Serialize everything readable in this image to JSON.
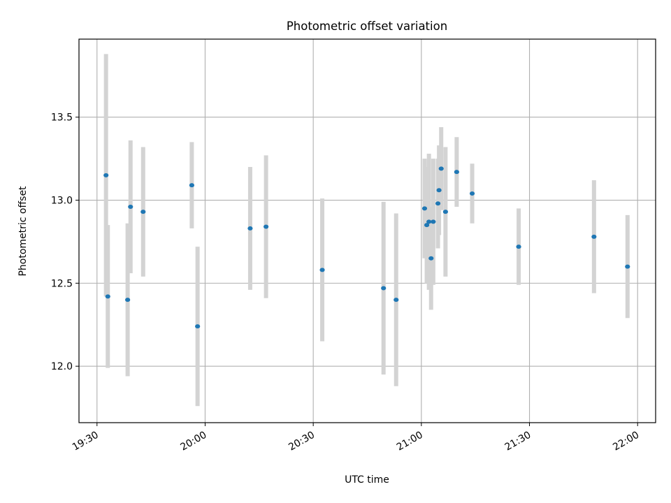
{
  "chart_data": {
    "type": "scatter",
    "title": "Photometric offset variation",
    "xlabel": "UTC time",
    "ylabel": "Photometric offset",
    "grid": true,
    "legend": "none",
    "xlim": [
      "19:25",
      "22:05"
    ],
    "ylim": [
      11.66,
      13.97
    ],
    "x_ticks": [
      "19:30",
      "20:00",
      "20:30",
      "21:00",
      "21:30",
      "22:00"
    ],
    "y_ticks": [
      12.0,
      12.5,
      13.0,
      13.5
    ],
    "y_tick_labels": [
      "12.0",
      "12.5",
      "13.0",
      "13.5"
    ],
    "colors": {
      "point": "#1f77b4",
      "errorbar": "#d3d3d3",
      "grid": "#b0b0b0",
      "axes": "#000000"
    },
    "points": [
      {
        "x": "19:32:30",
        "y": 13.15,
        "err": 0.73
      },
      {
        "x": "19:33:00",
        "y": 12.42,
        "err": 0.43
      },
      {
        "x": "19:38:30",
        "y": 12.4,
        "err": 0.46
      },
      {
        "x": "19:39:18",
        "y": 12.96,
        "err": 0.4
      },
      {
        "x": "19:42:48",
        "y": 12.93,
        "err": 0.39
      },
      {
        "x": "19:56:18",
        "y": 13.09,
        "err": 0.26
      },
      {
        "x": "19:57:54",
        "y": 12.24,
        "err": 0.48
      },
      {
        "x": "20:12:30",
        "y": 12.83,
        "err": 0.37
      },
      {
        "x": "20:16:54",
        "y": 12.84,
        "err": 0.43
      },
      {
        "x": "20:32:30",
        "y": 12.58,
        "err": 0.43
      },
      {
        "x": "20:49:30",
        "y": 12.47,
        "err": 0.52
      },
      {
        "x": "20:53:00",
        "y": 12.4,
        "err": 0.52
      },
      {
        "x": "21:00:54",
        "y": 12.95,
        "err": 0.3
      },
      {
        "x": "21:01:30",
        "y": 12.85,
        "err": 0.35
      },
      {
        "x": "21:02:06",
        "y": 12.87,
        "err": 0.41
      },
      {
        "x": "21:02:42",
        "y": 12.65,
        "err": 0.31
      },
      {
        "x": "21:03:18",
        "y": 12.87,
        "err": 0.38
      },
      {
        "x": "21:04:36",
        "y": 12.98,
        "err": 0.27
      },
      {
        "x": "21:04:54",
        "y": 13.06,
        "err": 0.27
      },
      {
        "x": "21:05:30",
        "y": 13.19,
        "err": 0.25
      },
      {
        "x": "21:06:42",
        "y": 12.93,
        "err": 0.39
      },
      {
        "x": "21:09:48",
        "y": 13.17,
        "err": 0.21
      },
      {
        "x": "21:14:06",
        "y": 13.04,
        "err": 0.18
      },
      {
        "x": "21:27:00",
        "y": 12.72,
        "err": 0.23
      },
      {
        "x": "21:47:54",
        "y": 12.78,
        "err": 0.34
      },
      {
        "x": "21:57:12",
        "y": 12.6,
        "err": 0.31
      }
    ]
  }
}
